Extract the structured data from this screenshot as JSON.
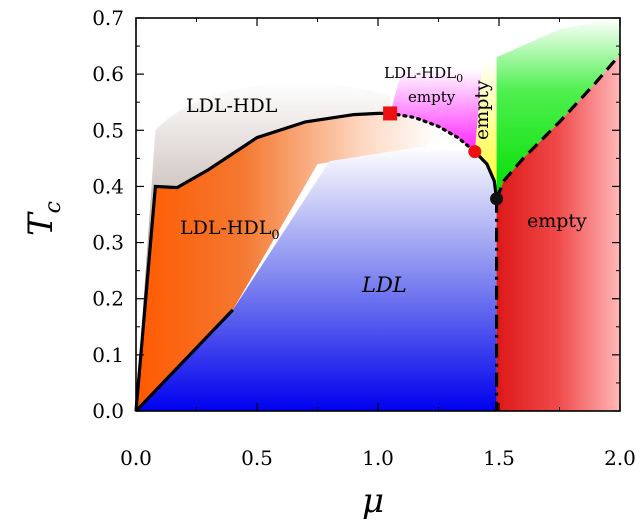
{
  "chart_data": {
    "type": "area",
    "title": "",
    "xlabel": "μ",
    "ylabel": "T_c",
    "xlim": [
      0.0,
      2.0
    ],
    "ylim": [
      0.0,
      0.7
    ],
    "xticks": [
      "0.0",
      "0.5",
      "1.0",
      "1.5",
      "2.0"
    ],
    "yticks": [
      "0.0",
      "0.1",
      "0.2",
      "0.3",
      "0.4",
      "0.5",
      "0.6",
      "0.7"
    ],
    "regions": [
      {
        "label": "LDL-HDL",
        "sub": "",
        "italic": false,
        "color": "#5b4a45"
      },
      {
        "label": "LDL-HDL",
        "sub": "0",
        "italic": false,
        "color": "#f26418"
      },
      {
        "label": "LDL",
        "sub": "",
        "italic": true,
        "color": "#1010f0"
      },
      {
        "label": "LDL-HDL",
        "sub": "0",
        "label2": "empty",
        "italic": false,
        "color": "#ff00ff"
      },
      {
        "label": "empty",
        "sub": "",
        "italic": false,
        "color": "#ffff33",
        "rotated": true
      },
      {
        "label": "empty",
        "sub": "",
        "italic": false,
        "color": "#e82020"
      },
      {
        "label": "",
        "sub": "",
        "italic": false,
        "color": "#00dd00"
      }
    ],
    "series": [
      {
        "style": "solid",
        "x": [
          0.0,
          0.08,
          0.17,
          0.3,
          0.5,
          0.7,
          0.9,
          1.0,
          1.05
        ],
        "y": [
          0.0,
          0.4,
          0.398,
          0.43,
          0.487,
          0.515,
          0.528,
          0.53,
          0.53
        ]
      },
      {
        "style": "dotted",
        "x": [
          1.05,
          1.15,
          1.25,
          1.33,
          1.4
        ],
        "y": [
          0.53,
          0.523,
          0.507,
          0.487,
          0.462
        ]
      },
      {
        "style": "solid",
        "x": [
          1.4,
          1.45,
          1.48,
          1.49
        ],
        "y": [
          0.462,
          0.44,
          0.41,
          0.378
        ]
      },
      {
        "style": "dashed",
        "x": [
          1.49,
          1.52,
          1.6,
          1.75,
          1.9,
          2.0
        ],
        "y": [
          0.378,
          0.41,
          0.45,
          0.515,
          0.585,
          0.635
        ]
      },
      {
        "style": "dashdot",
        "x": [
          1.49,
          1.49
        ],
        "y": [
          0.378,
          0.0
        ]
      },
      {
        "style": "solid",
        "x": [
          0.0,
          0.4
        ],
        "y": [
          0.0,
          0.18
        ]
      }
    ],
    "points": [
      {
        "x": 1.05,
        "y": 0.53,
        "marker": "square",
        "color": "#ee1111"
      },
      {
        "x": 1.4,
        "y": 0.462,
        "marker": "circle",
        "color": "#ee1111"
      },
      {
        "x": 1.49,
        "y": 0.378,
        "marker": "circle",
        "color": "#111111"
      }
    ],
    "grid": false
  }
}
